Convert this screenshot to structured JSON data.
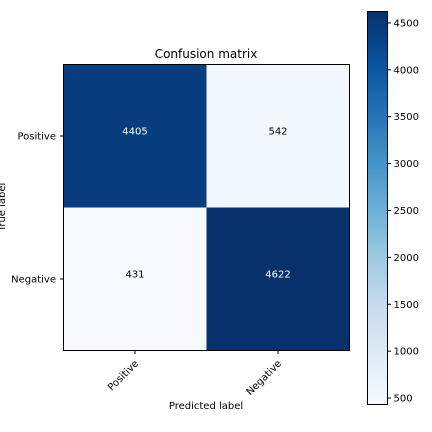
{
  "chart_data": {
    "type": "heatmap",
    "title": "Confusion matrix",
    "xlabel": "Predicted label",
    "ylabel": "True label",
    "x_categories": [
      "Positive",
      "Negative"
    ],
    "y_categories": [
      "Positive",
      "Negative"
    ],
    "values": [
      [
        4405,
        542
      ],
      [
        431,
        4622
      ]
    ],
    "colormap": "Blues",
    "color_low": "#f7fbff",
    "color_high": "#08306b",
    "text_color_light": "#ffffff",
    "text_color_dark": "#000000",
    "colorbar": {
      "min": 431,
      "max": 4622,
      "ticks": [
        500,
        1000,
        1500,
        2000,
        2500,
        3000,
        3500,
        4000,
        4500
      ]
    },
    "grid": false,
    "legend": "colorbar-right"
  }
}
